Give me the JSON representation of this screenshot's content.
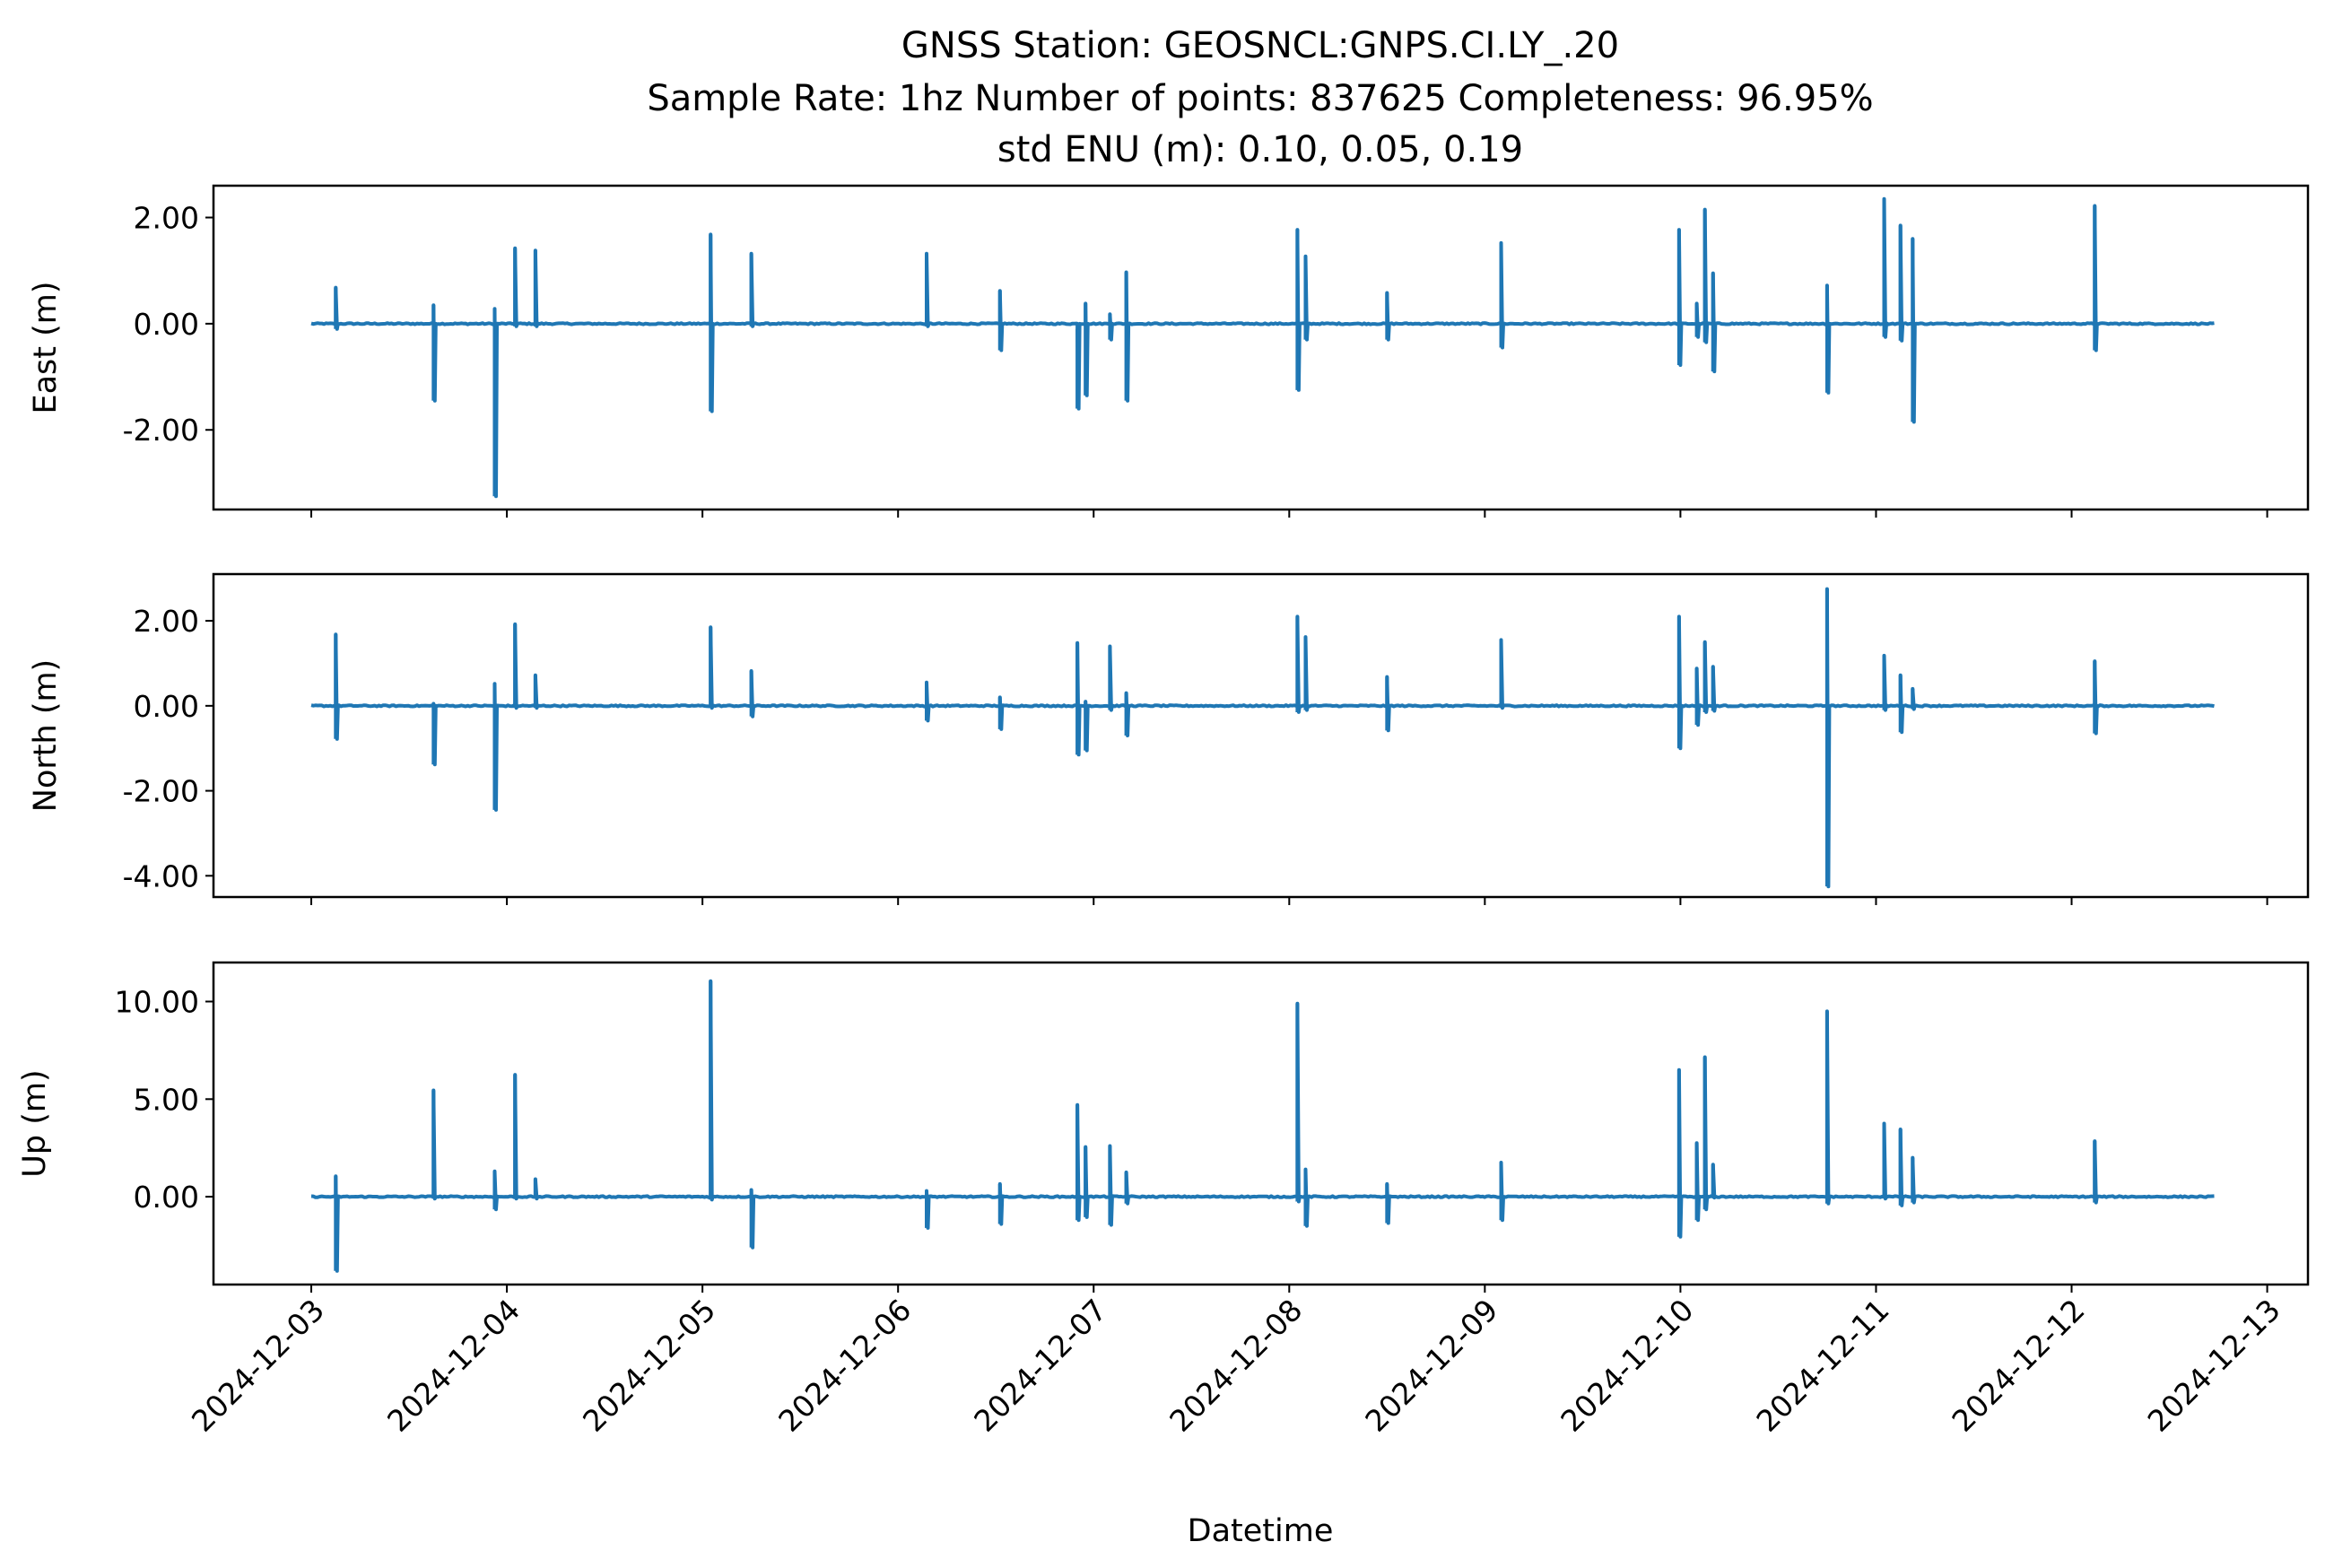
{
  "figure": {
    "title_lines": [
      "GNSS Station: GEOSNCL:GNPS.CI.LY_.20",
      "Sample Rate: 1hz   Number of points: 837625    Completeness:  96.95%",
      "std ENU (m):  0.10, 0.05, 0.19"
    ],
    "xlabel": "Datetime",
    "series_color": "#1f77b4"
  },
  "chart_data": [
    {
      "type": "line",
      "ylabel": "East (m)",
      "xlabel": "",
      "xlim": [
        "2024-12-02T12:00",
        "2024-12-13T05:00"
      ],
      "ylim": [
        -3.5,
        2.6
      ],
      "yticks": [
        2.0,
        0.0,
        -2.0
      ],
      "ytick_labels": [
        "2.00",
        "0.00",
        "-2.00"
      ],
      "xticks": [
        "2024-12-03",
        "2024-12-04",
        "2024-12-05",
        "2024-12-06",
        "2024-12-07",
        "2024-12-08",
        "2024-12-09",
        "2024-12-10",
        "2024-12-11",
        "2024-12-12",
        "2024-12-13"
      ],
      "xtick_labels": [],
      "grid": false,
      "series": [
        {
          "x_start": "2024-12-03T00:00",
          "x_end": "2024-12-12T17:30",
          "baseline": 0.0,
          "spikes": [
            {
              "t": "2024-12-03T03:00",
              "max": 0.68,
              "min": -0.1
            },
            {
              "t": "2024-12-03T15:00",
              "max": 0.35,
              "min": -1.45
            },
            {
              "t": "2024-12-03T22:30",
              "max": 0.28,
              "min": -3.25
            },
            {
              "t": "2024-12-04T01:00",
              "max": 1.42,
              "min": -0.05
            },
            {
              "t": "2024-12-04T03:30",
              "max": 1.38,
              "min": -0.05
            },
            {
              "t": "2024-12-05T01:00",
              "max": 1.68,
              "min": -1.65
            },
            {
              "t": "2024-12-05T06:00",
              "max": 1.32,
              "min": -0.05
            },
            {
              "t": "2024-12-06T03:30",
              "max": 1.32,
              "min": -0.05
            },
            {
              "t": "2024-12-06T12:30",
              "max": 0.62,
              "min": -0.5
            },
            {
              "t": "2024-12-06T22:00",
              "max": -0.1,
              "min": -1.6
            },
            {
              "t": "2024-12-06T23:00",
              "max": 0.38,
              "min": -1.35
            },
            {
              "t": "2024-12-07T02:00",
              "max": 0.18,
              "min": -0.3
            },
            {
              "t": "2024-12-07T04:00",
              "max": 0.97,
              "min": -1.45
            },
            {
              "t": "2024-12-08T01:00",
              "max": 1.77,
              "min": -1.25
            },
            {
              "t": "2024-12-08T02:00",
              "max": 1.27,
              "min": -0.3
            },
            {
              "t": "2024-12-08T12:00",
              "max": 0.58,
              "min": -0.3
            },
            {
              "t": "2024-12-09T02:00",
              "max": 1.52,
              "min": -0.45
            },
            {
              "t": "2024-12-09T23:50",
              "max": 1.77,
              "min": -0.78
            },
            {
              "t": "2024-12-10T02:00",
              "max": 0.38,
              "min": -0.25
            },
            {
              "t": "2024-12-10T03:00",
              "max": 2.15,
              "min": -0.35
            },
            {
              "t": "2024-12-10T04:00",
              "max": 0.95,
              "min": -0.9
            },
            {
              "t": "2024-12-10T18:00",
              "max": 0.72,
              "min": -1.3
            },
            {
              "t": "2024-12-11T01:00",
              "max": 2.35,
              "min": -0.25
            },
            {
              "t": "2024-12-11T03:00",
              "max": 1.85,
              "min": -0.32
            },
            {
              "t": "2024-12-11T04:30",
              "max": 1.6,
              "min": -1.85
            },
            {
              "t": "2024-12-12T02:50",
              "max": 2.22,
              "min": -0.5
            }
          ]
        }
      ]
    },
    {
      "type": "line",
      "ylabel": "North (m)",
      "xlabel": "",
      "xlim": [
        "2024-12-02T12:00",
        "2024-12-13T05:00"
      ],
      "ylim": [
        -4.5,
        3.1
      ],
      "yticks": [
        2.0,
        0.0,
        -2.0,
        -4.0
      ],
      "ytick_labels": [
        "2.00",
        "0.00",
        "-2.00",
        "-4.00"
      ],
      "xticks": [
        "2024-12-03",
        "2024-12-04",
        "2024-12-05",
        "2024-12-06",
        "2024-12-07",
        "2024-12-08",
        "2024-12-09",
        "2024-12-10",
        "2024-12-11",
        "2024-12-12",
        "2024-12-13"
      ],
      "xtick_labels": [],
      "grid": false,
      "series": [
        {
          "x_start": "2024-12-03T00:00",
          "x_end": "2024-12-12T17:30",
          "baseline": 0.0,
          "spikes": [
            {
              "t": "2024-12-03T03:00",
              "max": 1.68,
              "min": -0.78
            },
            {
              "t": "2024-12-03T15:00",
              "max": 0.05,
              "min": -1.38
            },
            {
              "t": "2024-12-03T22:30",
              "max": 0.52,
              "min": -2.45
            },
            {
              "t": "2024-12-04T01:00",
              "max": 1.92,
              "min": -0.05
            },
            {
              "t": "2024-12-04T03:30",
              "max": 0.72,
              "min": -0.05
            },
            {
              "t": "2024-12-05T01:00",
              "max": 1.85,
              "min": -0.05
            },
            {
              "t": "2024-12-05T06:00",
              "max": 0.82,
              "min": -0.25
            },
            {
              "t": "2024-12-06T03:30",
              "max": 0.55,
              "min": -0.35
            },
            {
              "t": "2024-12-06T12:30",
              "max": 0.2,
              "min": -0.55
            },
            {
              "t": "2024-12-06T22:00",
              "max": 1.48,
              "min": -1.15
            },
            {
              "t": "2024-12-06T23:00",
              "max": 0.1,
              "min": -1.05
            },
            {
              "t": "2024-12-07T02:00",
              "max": 1.4,
              "min": -0.1
            },
            {
              "t": "2024-12-07T04:00",
              "max": 0.3,
              "min": -0.7
            },
            {
              "t": "2024-12-08T01:00",
              "max": 2.1,
              "min": -0.15
            },
            {
              "t": "2024-12-08T02:00",
              "max": 1.62,
              "min": -0.1
            },
            {
              "t": "2024-12-08T12:00",
              "max": 0.68,
              "min": -0.58
            },
            {
              "t": "2024-12-09T02:00",
              "max": 1.55,
              "min": -0.05
            },
            {
              "t": "2024-12-09T23:50",
              "max": 2.1,
              "min": -1.0
            },
            {
              "t": "2024-12-10T02:00",
              "max": 0.88,
              "min": -0.45
            },
            {
              "t": "2024-12-10T03:00",
              "max": 1.5,
              "min": -0.15
            },
            {
              "t": "2024-12-10T04:00",
              "max": 0.92,
              "min": -0.12
            },
            {
              "t": "2024-12-10T18:00",
              "max": 2.75,
              "min": -4.25
            },
            {
              "t": "2024-12-11T01:00",
              "max": 1.18,
              "min": -0.1
            },
            {
              "t": "2024-12-11T03:00",
              "max": 0.72,
              "min": -0.62
            },
            {
              "t": "2024-12-11T04:30",
              "max": 0.4,
              "min": -0.08
            },
            {
              "t": "2024-12-12T02:50",
              "max": 1.05,
              "min": -0.65
            }
          ]
        }
      ]
    },
    {
      "type": "line",
      "ylabel": "Up (m)",
      "xlabel": "Datetime",
      "xlim": [
        "2024-12-02T12:00",
        "2024-12-13T05:00"
      ],
      "ylim": [
        -4.5,
        12.0
      ],
      "yticks": [
        10.0,
        5.0,
        0.0
      ],
      "ytick_labels": [
        "10.00",
        "5.00",
        "0.00"
      ],
      "xticks": [
        "2024-12-03",
        "2024-12-04",
        "2024-12-05",
        "2024-12-06",
        "2024-12-07",
        "2024-12-08",
        "2024-12-09",
        "2024-12-10",
        "2024-12-11",
        "2024-12-12",
        "2024-12-13"
      ],
      "xtick_labels": [
        "2024-12-03",
        "2024-12-04",
        "2024-12-05",
        "2024-12-06",
        "2024-12-07",
        "2024-12-08",
        "2024-12-09",
        "2024-12-10",
        "2024-12-11",
        "2024-12-12",
        "2024-12-13"
      ],
      "grid": false,
      "series": [
        {
          "x_start": "2024-12-03T00:00",
          "x_end": "2024-12-12T17:30",
          "baseline": 0.0,
          "spikes": [
            {
              "t": "2024-12-03T03:00",
              "max": 1.05,
              "min": -3.8
            },
            {
              "t": "2024-12-03T15:00",
              "max": 5.45,
              "min": -0.1
            },
            {
              "t": "2024-12-03T22:30",
              "max": 1.3,
              "min": -0.65
            },
            {
              "t": "2024-12-04T01:00",
              "max": 6.25,
              "min": -0.1
            },
            {
              "t": "2024-12-04T03:30",
              "max": 0.9,
              "min": -0.1
            },
            {
              "t": "2024-12-05T01:00",
              "max": 11.05,
              "min": -0.15
            },
            {
              "t": "2024-12-05T06:00",
              "max": 0.35,
              "min": -2.6
            },
            {
              "t": "2024-12-06T03:30",
              "max": 0.3,
              "min": -1.6
            },
            {
              "t": "2024-12-06T12:30",
              "max": 0.65,
              "min": -1.4
            },
            {
              "t": "2024-12-06T22:00",
              "max": 4.7,
              "min": -1.2
            },
            {
              "t": "2024-12-06T23:00",
              "max": 2.55,
              "min": -1.05
            },
            {
              "t": "2024-12-07T02:00",
              "max": 2.6,
              "min": -1.45
            },
            {
              "t": "2024-12-07T04:00",
              "max": 1.25,
              "min": -0.35
            },
            {
              "t": "2024-12-08T01:00",
              "max": 9.9,
              "min": -0.25
            },
            {
              "t": "2024-12-08T02:00",
              "max": 1.4,
              "min": -1.5
            },
            {
              "t": "2024-12-08T12:00",
              "max": 0.65,
              "min": -1.35
            },
            {
              "t": "2024-12-09T02:00",
              "max": 1.75,
              "min": -1.2
            },
            {
              "t": "2024-12-09T23:50",
              "max": 6.5,
              "min": -2.05
            },
            {
              "t": "2024-12-10T02:00",
              "max": 2.75,
              "min": -1.2
            },
            {
              "t": "2024-12-10T03:00",
              "max": 7.15,
              "min": -0.65
            },
            {
              "t": "2024-12-10T04:00",
              "max": 1.65,
              "min": -0.05
            },
            {
              "t": "2024-12-10T18:00",
              "max": 9.5,
              "min": -0.35
            },
            {
              "t": "2024-12-11T01:00",
              "max": 3.75,
              "min": -0.1
            },
            {
              "t": "2024-12-11T03:00",
              "max": 3.45,
              "min": -0.45
            },
            {
              "t": "2024-12-11T04:30",
              "max": 2.0,
              "min": -0.3
            },
            {
              "t": "2024-12-12T02:50",
              "max": 2.85,
              "min": -0.3
            }
          ]
        }
      ]
    }
  ]
}
